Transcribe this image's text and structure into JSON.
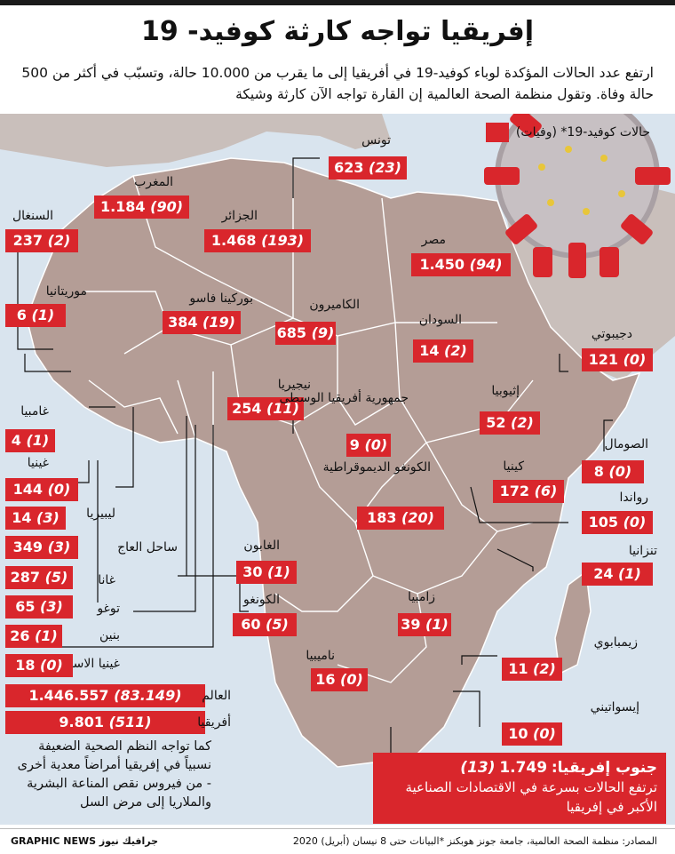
{
  "title": "إفريقيا تواجه كارثة كوفيد- 19",
  "subtitle": "ارتفع عدد الحالات المؤكدة لوباء كوفيد-19 في أفريقيا إلى ما يقرب من 10.000 حالة، وتسبّب في أكثر من 500 حالة وفاة. وتقول منظمة الصحة العالمية إن القارة تواجه الآن كارثة وشيكة",
  "legend": "حالات كوفيد-19* (وفيات)",
  "colors": {
    "accent": "#d9262c",
    "land": "#b49d96",
    "sea": "#d9e4ee"
  },
  "countries": [
    {
      "name": "تونس",
      "cases": "623",
      "deaths": "(23)"
    },
    {
      "name": "المغرب",
      "cases": "1.184",
      "deaths": "(90)"
    },
    {
      "name": "الجزائر",
      "cases": "1.468",
      "deaths": "(193)"
    },
    {
      "name": "السنغال",
      "cases": "237",
      "deaths": "(2)"
    },
    {
      "name": "مصر",
      "cases": "1.450",
      "deaths": "(94)"
    },
    {
      "name": "موريتانيا",
      "cases": "6",
      "deaths": "(1)"
    },
    {
      "name": "بوركينا فاسو",
      "cases": "384",
      "deaths": "(19)"
    },
    {
      "name": "الكاميرون",
      "cases": "685",
      "deaths": "(9)"
    },
    {
      "name": "السودان",
      "cases": "14",
      "deaths": "(2)"
    },
    {
      "name": "دجيبوتي",
      "cases": "121",
      "deaths": "(0)"
    },
    {
      "name": "غامبيا",
      "cases": "4",
      "deaths": "(1)"
    },
    {
      "name": "نيجيريا",
      "cases": "254",
      "deaths": "(11)"
    },
    {
      "name": "جمهورية أفريقيا الوسطى",
      "cases": "9",
      "deaths": "(0)"
    },
    {
      "name": "إثيوبيا",
      "cases": "52",
      "deaths": "(2)"
    },
    {
      "name": "الصومال",
      "cases": "8",
      "deaths": "(0)"
    },
    {
      "name": "غينيا",
      "cases": "144",
      "deaths": "(0)"
    },
    {
      "name": "الكونغو الديموقراطية",
      "cases": "183",
      "deaths": "(20)"
    },
    {
      "name": "كينيا",
      "cases": "172",
      "deaths": "(6)"
    },
    {
      "name": "رواندا",
      "cases": "105",
      "deaths": "(0)"
    },
    {
      "name": "ليبيريا",
      "cases": "14",
      "deaths": "(3)"
    },
    {
      "name": "ساحل العاج",
      "cases": "349",
      "deaths": "(3)"
    },
    {
      "name": "الغابون",
      "cases": "30",
      "deaths": "(1)"
    },
    {
      "name": "تنزانيا",
      "cases": "24",
      "deaths": "(1)"
    },
    {
      "name": "غانا",
      "cases": "287",
      "deaths": "(5)"
    },
    {
      "name": "توغو",
      "cases": "65",
      "deaths": "(3)"
    },
    {
      "name": "الكونغو",
      "cases": "60",
      "deaths": "(5)"
    },
    {
      "name": "زامبيا",
      "cases": "39",
      "deaths": "(1)"
    },
    {
      "name": "بنين",
      "cases": "26",
      "deaths": "(1)"
    },
    {
      "name": "زيمبابوي",
      "cases": "11",
      "deaths": "(2)"
    },
    {
      "name": "غينيا الاستوائية",
      "cases": "18",
      "deaths": "(0)"
    },
    {
      "name": "ناميبيا",
      "cases": "16",
      "deaths": "(0)"
    },
    {
      "name": "إيسواتيني",
      "cases": "10",
      "deaths": "(0)"
    }
  ],
  "world": {
    "name": "العالم",
    "cases": "1.446.557",
    "deaths": "(83.149)"
  },
  "africa": {
    "name": "أفريقيا",
    "cases": "9.801",
    "deaths": "(511)"
  },
  "south_africa": {
    "name": "جنوب إفريقيا:",
    "cases": "1.749",
    "deaths": "(13)",
    "text": "ترتفع الحالات بسرعة في الاقتصادات الصناعية الأكبر في إفريقيا"
  },
  "note": "كما تواجه النظم الصحية الضعيفة نسبياً في إفريقيا أمراضاً معدية أخرى - من فيروس نقص المناعة البشرية والملاريا إلى مرض السل",
  "footer": {
    "source": "المصادر: منظمة الصحة العالمية، جامعة جونز هوبكنز *البيانات حتى 8 نيسان (أبريل) 2020",
    "brand": "GRAPHIC NEWS جرافيك نيوز"
  }
}
